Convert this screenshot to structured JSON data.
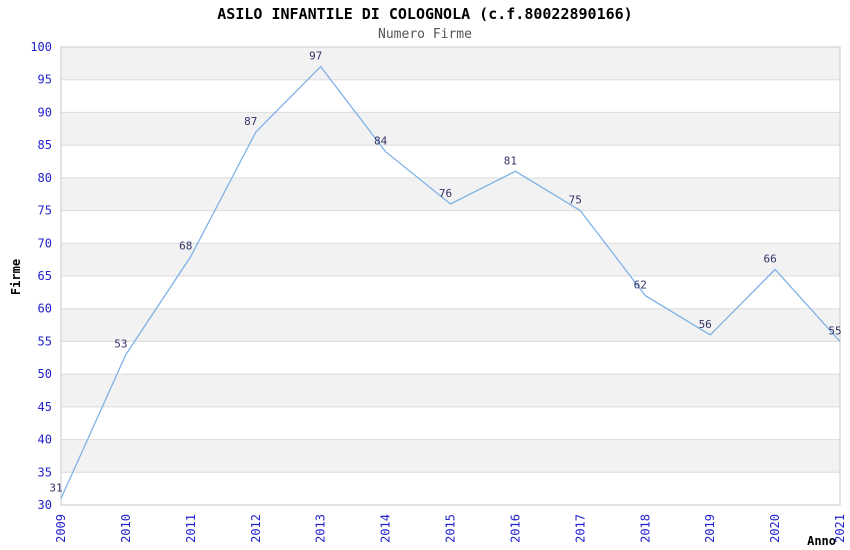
{
  "title": "ASILO INFANTILE DI COLOGNOLA (c.f.80022890166)",
  "subtitle": "Numero Firme",
  "colors": {
    "line": "#7fb2e6",
    "tick_label": "#2222cc",
    "data_label": "#333366",
    "band": "#f2f2f2",
    "grid": "#dcdcdc",
    "plot_border": "#c9c9c9",
    "plot_background": "#ffffff",
    "subtitle": "#555555",
    "axis_title": "#000000"
  },
  "chart_data": {
    "type": "line",
    "title": "ASILO INFANTILE DI COLOGNOLA (c.f.80022890166)",
    "subtitle": "Numero Firme",
    "xlabel": "Anno",
    "ylabel": "Firme",
    "categories": [
      "2009",
      "2010",
      "2011",
      "2012",
      "2013",
      "2014",
      "2015",
      "2016",
      "2017",
      "2018",
      "2019",
      "2020",
      "2021"
    ],
    "values": [
      31,
      53,
      68,
      87,
      97,
      84,
      76,
      81,
      75,
      62,
      56,
      66,
      55
    ],
    "ylim": [
      30,
      100
    ],
    "ytick_step": 5,
    "grid": true,
    "banded_background": true,
    "legend_position": "none",
    "data_labels_shown": true
  }
}
